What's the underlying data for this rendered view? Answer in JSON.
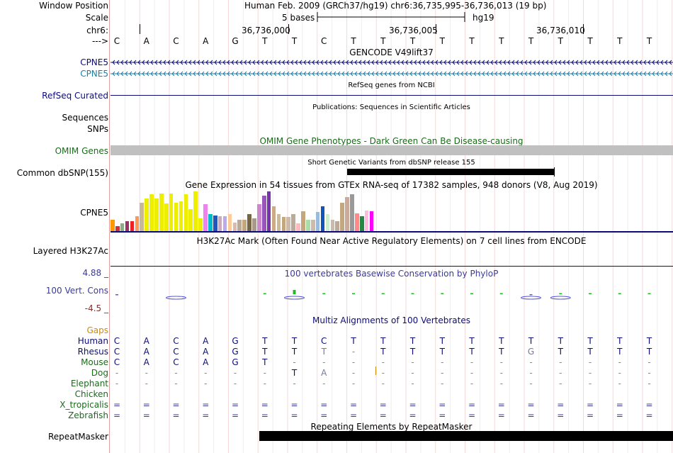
{
  "header": {
    "window_position_label": "Window Position",
    "window_position_value": "Human Feb. 2009 (GRCh37/hg19)   chr6:36,735,995-36,736,013 (19 bp)",
    "scale_label": "Scale",
    "scale_text": "5 bases",
    "scale_assembly": "hg19",
    "chrom_label": "chr6:",
    "coord_ticks": [
      "36,736,000",
      "36,736,005",
      "36,736,010"
    ],
    "strand_label": "--->",
    "bases": [
      "C",
      "A",
      "C",
      "A",
      "G",
      "T",
      "T",
      "C",
      "T",
      "T",
      "T",
      "T",
      "T",
      "T",
      "T",
      "T",
      "T",
      "T",
      "T"
    ]
  },
  "tracks": {
    "gencode": {
      "title": "GENCODE V49lift37",
      "rows": [
        {
          "label": "CPNE5",
          "color": "#0c0c78"
        },
        {
          "label": "CPNE5",
          "color": "#1a7fa8"
        }
      ]
    },
    "refseq": {
      "label": "RefSeq Curated",
      "title": "RefSeq genes from NCBI"
    },
    "publications": {
      "title": "Publications: Sequences in Scientific Articles",
      "labels": [
        "Sequences",
        "SNPs"
      ]
    },
    "omim": {
      "title": "OMIM Gene Phenotypes - Dark Green Can Be Disease-causing",
      "label": "OMIM Genes"
    },
    "dbsnp": {
      "title": "Short Genetic Variants from dbSNP release 155",
      "label": "Common dbSNP(155)"
    },
    "gtex": {
      "title": "Gene Expression in 54 tissues from GTEx RNA-seq of 17382 samples, 948 donors (V8, Aug 2019)",
      "label": "CPNE5",
      "values": [
        0.28,
        0.12,
        0.2,
        0.25,
        0.25,
        0.38,
        0.72,
        0.82,
        0.93,
        0.83,
        0.95,
        0.7,
        0.95,
        0.72,
        0.75,
        0.93,
        0.55,
        1.0,
        0.33,
        0.68,
        0.42,
        0.4,
        0.37,
        0.37,
        0.42,
        0.22,
        0.28,
        0.28,
        0.42,
        0.32,
        0.68,
        0.9,
        1.0,
        0.62,
        0.42,
        0.35,
        0.35,
        0.42,
        0.2,
        0.5,
        0.28,
        0.28,
        0.48,
        0.62,
        0.42,
        0.28,
        0.25,
        0.72,
        0.85,
        0.93,
        0.45,
        0.38,
        0.52,
        0.5
      ],
      "colors": [
        "#ff9900",
        "#cc3333",
        "#8faa88",
        "#993366",
        "#ee2222",
        "#ff9955",
        "#c9b898",
        "#eeee00",
        "#eeee00",
        "#eeee00",
        "#eeee00",
        "#eeee00",
        "#eeee00",
        "#eeee00",
        "#eeee00",
        "#eeee00",
        "#eeee00",
        "#eeee00",
        "#eeee00",
        "#ee82ee",
        "#00bbcc",
        "#2255bb",
        "#ccaabb",
        "#bbaaee",
        "#ffcc99",
        "#ddbbaa",
        "#bbaa99",
        "#c4a77d",
        "#776644",
        "#aa9988",
        "#cc88cc",
        "#9955bb",
        "#7733aa",
        "#ccaa88",
        "#ccbb99",
        "#c4a77d",
        "#ccbbaa",
        "#bbaa99",
        "#ffbbbb",
        "#c4a77d",
        "#aaddaa",
        "#ccbbaa",
        "#99bbdd",
        "#1155bb",
        "#cceecc",
        "#ccbbaa",
        "#bbaa99",
        "#c4a77d",
        "#ccaa99",
        "#999999",
        "#ff8888",
        "#228844",
        "#ffbbdd",
        "#ff00ff"
      ]
    },
    "h3k27ac": {
      "title": "H3K27Ac Mark (Often Found Near Active Regulatory Elements) on 7 cell lines from ENCODE",
      "label": "Layered H3K27Ac"
    },
    "phylop": {
      "title": "100 vertebrates Basewise Conservation by PhyloP",
      "label": "100 Vert. Cons",
      "ymax": "4.88 _",
      "ymin": "-4.5 _",
      "values": [
        -0.1,
        0,
        0,
        0,
        0,
        0.3,
        1.2,
        0.2,
        0.1,
        0.2,
        0.1,
        0.1,
        0.1,
        0.2,
        -0.3,
        0.1,
        0.1,
        0.1,
        0.1
      ]
    },
    "multiz": {
      "title": "Multiz Alignments of 100 Vertebrates",
      "gaps_label": "Gaps",
      "species": [
        {
          "name": "Human",
          "color": "#0c0c78",
          "seq": [
            "C",
            "A",
            "C",
            "A",
            "G",
            "T",
            "T",
            "C",
            "T",
            "T",
            "T",
            "T",
            "T",
            "T",
            "T",
            "T",
            "T",
            "T",
            "T"
          ]
        },
        {
          "name": "Rhesus",
          "color": "#0c0c78",
          "seq": [
            "C",
            "A",
            "C",
            "A",
            "G",
            "T",
            "T",
            "T",
            "-",
            "T",
            "T",
            "T",
            "T",
            "T",
            "G",
            "T",
            "T",
            "T",
            "T"
          ]
        },
        {
          "name": "Mouse",
          "color": "#1a6b1a",
          "seq": [
            "C",
            "A",
            "C",
            "A",
            "G",
            "T",
            "-",
            "-",
            "-",
            "-",
            "-",
            "-",
            "-",
            "-",
            "-",
            "-",
            "-",
            "-",
            "-"
          ]
        },
        {
          "name": "Dog",
          "color": "#1a6b1a",
          "seq": [
            "-",
            "-",
            "-",
            "-",
            "-",
            "-",
            "T",
            "A",
            "-",
            "-",
            "-",
            "-",
            "-",
            "-",
            "-",
            "-",
            "-",
            "-",
            "-"
          ]
        },
        {
          "name": "Elephant",
          "color": "#1a6b1a",
          "seq": [
            "-",
            "-",
            "-",
            "-",
            "-",
            "-",
            "-",
            "-",
            "-",
            "-",
            "-",
            "-",
            "-",
            "-",
            "-",
            "-",
            "-",
            "-",
            "-"
          ]
        },
        {
          "name": "Chicken",
          "color": "#1a6b1a",
          "seq": [
            "",
            "",
            "",
            "",
            "",
            "",
            "",
            "",
            "",
            "",
            "",
            "",
            "",
            "",
            "",
            "",
            "",
            "",
            ""
          ]
        },
        {
          "name": "X_tropicalis",
          "color": "#1a6b1a",
          "seq": [
            "=",
            "=",
            "=",
            "=",
            "=",
            "=",
            "=",
            "=",
            "=",
            "=",
            "=",
            "=",
            "=",
            "=",
            "=",
            "=",
            "=",
            "=",
            "="
          ]
        },
        {
          "name": "Zebrafish",
          "color": "#1a6b1a",
          "seq": [
            "=",
            "=",
            "=",
            "=",
            "=",
            "=",
            "=",
            "=",
            "=",
            "=",
            "=",
            "=",
            "=",
            "=",
            "=",
            "=",
            "=",
            "=",
            "="
          ]
        }
      ]
    },
    "repeatmasker": {
      "title": "Repeating Elements by RepeatMasker",
      "label": "RepeatMasker"
    }
  }
}
